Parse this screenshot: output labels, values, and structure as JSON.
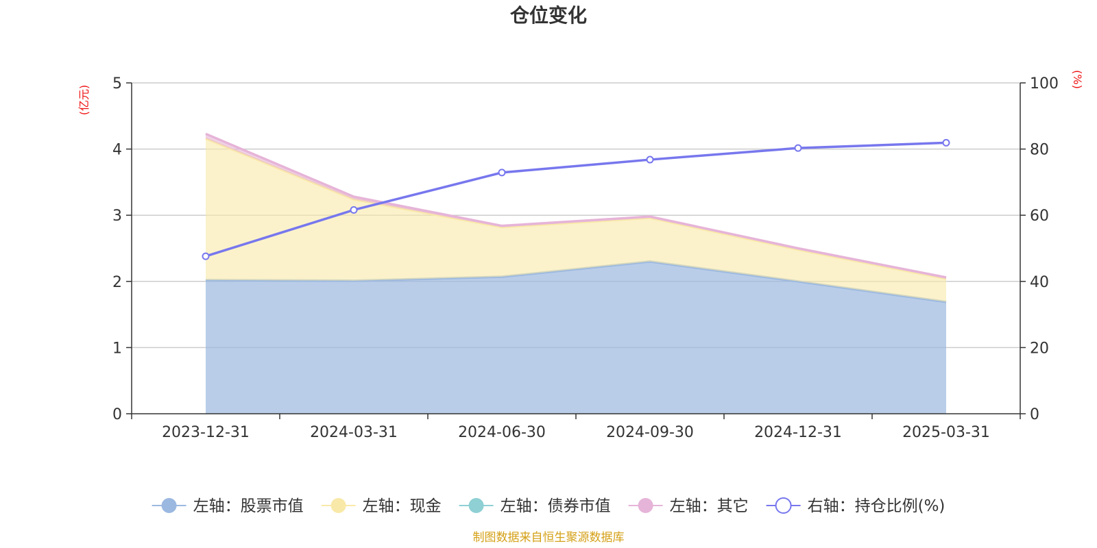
{
  "chart_data": {
    "type": "area",
    "title": "仓位变化",
    "left_unit": "(亿元)",
    "right_unit": "(%)",
    "categories": [
      "2023-12-31",
      "2024-03-31",
      "2024-06-30",
      "2024-09-30",
      "2024-12-31",
      "2025-03-31"
    ],
    "left_axis": {
      "ylim": [
        0,
        5
      ],
      "ticks": [
        0,
        1,
        2,
        3,
        4,
        5
      ]
    },
    "right_axis": {
      "ylim": [
        0,
        100
      ],
      "ticks": [
        0,
        20,
        40,
        60,
        80,
        100
      ]
    },
    "grid": true,
    "legend_position": "bottom",
    "series": [
      {
        "name": "左轴：股票市值",
        "axis": "left",
        "stack": "total",
        "kind": "area",
        "color": "#9bb8e0",
        "values": [
          2.02,
          2.01,
          2.07,
          2.3,
          2.0,
          1.69
        ]
      },
      {
        "name": "左轴：现金",
        "axis": "left",
        "stack": "total",
        "kind": "area",
        "color": "#f9e9a8",
        "values": [
          2.14,
          1.23,
          0.75,
          0.66,
          0.48,
          0.35
        ]
      },
      {
        "name": "左轴：债券市值",
        "axis": "left",
        "stack": "total",
        "kind": "area",
        "color": "#8fd0d4",
        "values": [
          0,
          0,
          0,
          0,
          0,
          0
        ]
      },
      {
        "name": "左轴：其它",
        "axis": "left",
        "stack": "total",
        "kind": "area",
        "color": "#e6b4d8",
        "values": [
          0.07,
          0.04,
          0.02,
          0.02,
          0.02,
          0.02
        ]
      },
      {
        "name": "右轴：持仓比例(%)",
        "axis": "right",
        "kind": "line",
        "color": "#7777ee",
        "values": [
          47.6,
          61.6,
          72.9,
          76.8,
          80.3,
          81.9
        ]
      }
    ],
    "source": "制图数据来自恒生聚源数据库"
  }
}
